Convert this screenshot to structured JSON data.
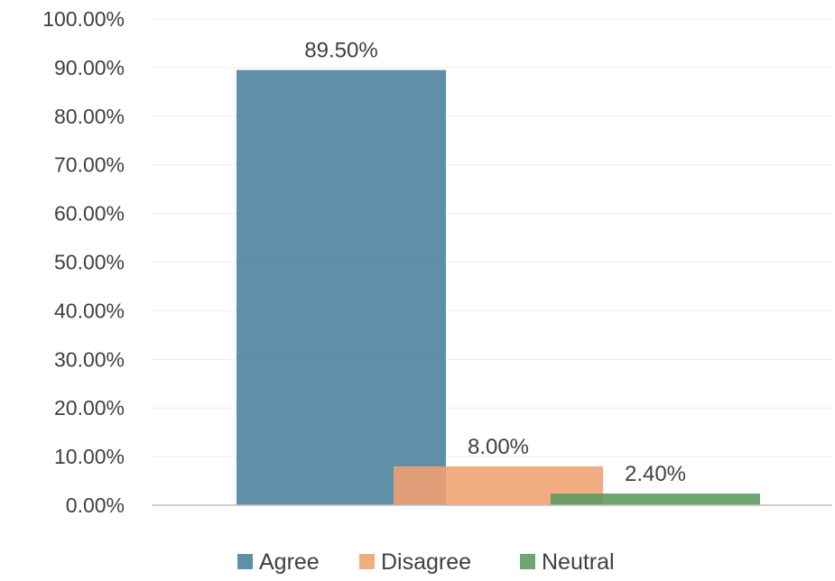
{
  "chart_data": {
    "type": "bar",
    "title": "",
    "xlabel": "",
    "ylabel": "",
    "ylim": [
      0,
      100
    ],
    "y_ticks": [
      "0.00%",
      "10.00%",
      "20.00%",
      "30.00%",
      "40.00%",
      "50.00%",
      "60.00%",
      "70.00%",
      "80.00%",
      "90.00%",
      "100.00%"
    ],
    "grid": true,
    "legend_position": "bottom",
    "series": [
      {
        "name": "Agree",
        "value": 89.5,
        "label": "89.50%",
        "color": "#4a7f9d"
      },
      {
        "name": "Disagree",
        "value": 8.0,
        "label": "8.00%",
        "color": "#f0a070"
      },
      {
        "name": "Neutral",
        "value": 2.4,
        "label": "2.40%",
        "color": "#5a9a5e"
      }
    ]
  }
}
